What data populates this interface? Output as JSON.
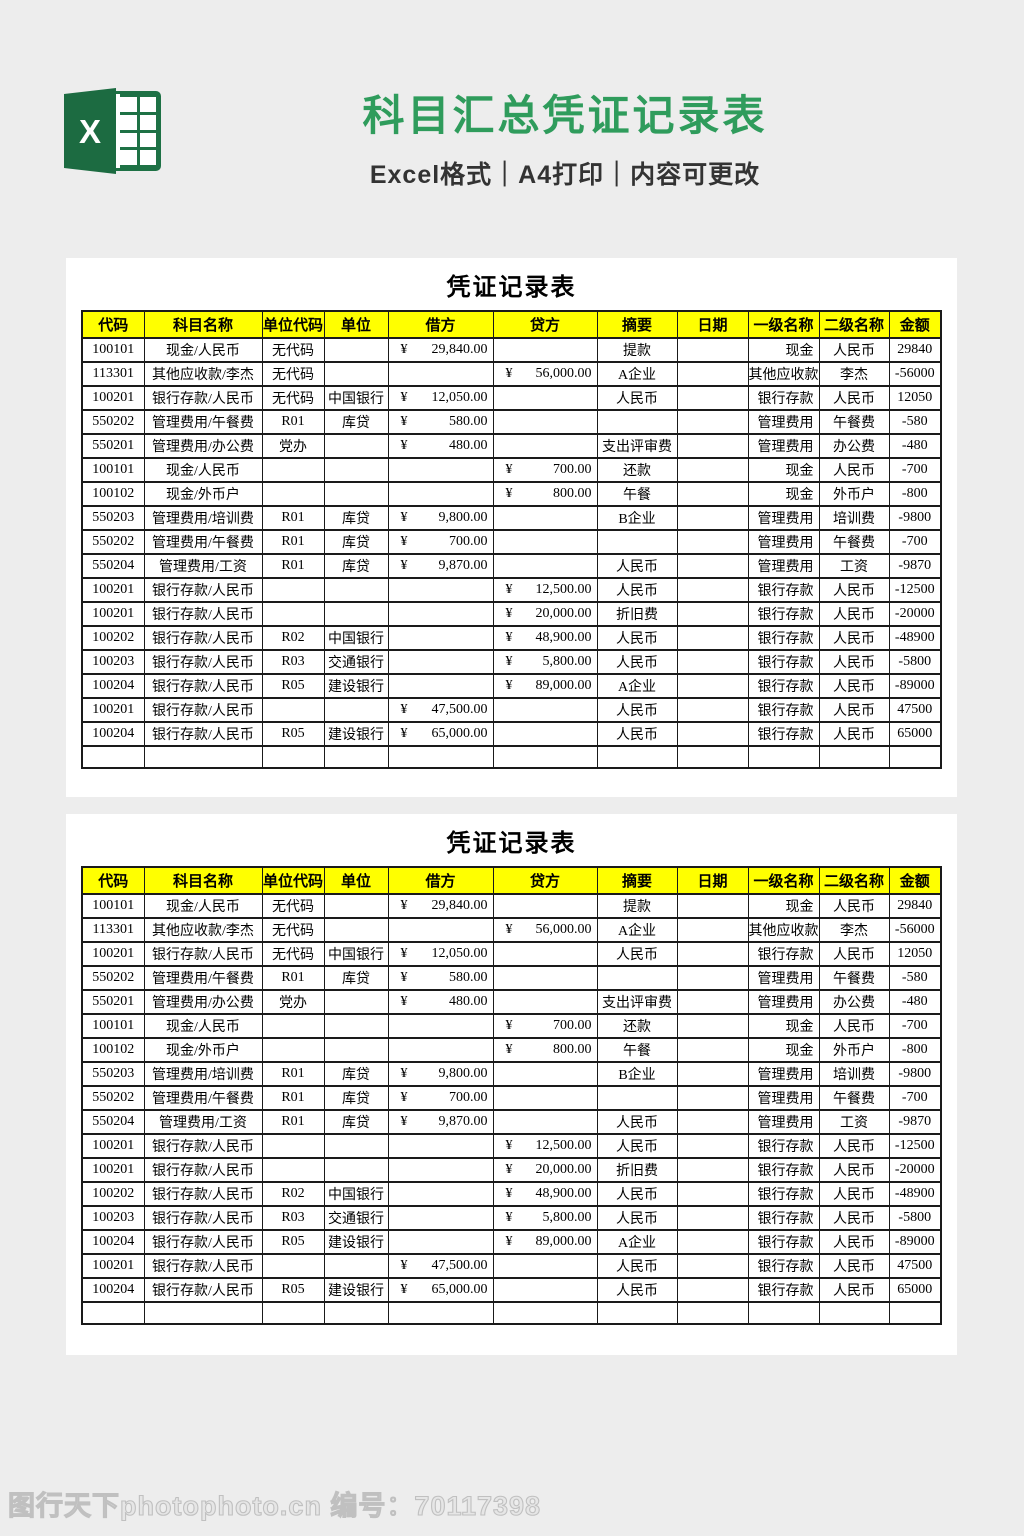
{
  "colors": {
    "page_bg": "#ededed",
    "panel_bg": "#ffffff",
    "accent_green": "#2f9c5c",
    "excel_green": "#1e7145",
    "excel_plate": "#1c6b41",
    "header_bg": "#ffff00",
    "border": "#1a1a1a",
    "subtitle": "#333333",
    "wm_fill": "#e6e6e6",
    "wm_stroke": "#c0c0c0"
  },
  "header": {
    "logo_letter": "X",
    "title": "科目汇总凭证记录表",
    "subtitle": "Excel格式｜A4打印｜内容可更改"
  },
  "table": {
    "title": "凭证记录表",
    "currency_symbol": "¥",
    "headers": [
      "代码",
      "科目名称",
      "单位代码",
      "单位",
      "借方",
      "贷方",
      "摘要",
      "日期",
      "一级名称",
      "二级名称",
      "金额"
    ],
    "rows": [
      {
        "code": "100101",
        "subject": "现金/人民币",
        "unit_code": "无代码",
        "unit": "",
        "debit": "29,840.00",
        "credit": "",
        "summary": "提款",
        "date": "",
        "level1": "现金",
        "level2": "人民币",
        "amount": "29840"
      },
      {
        "code": "113301",
        "subject": "其他应收款/李杰",
        "unit_code": "无代码",
        "unit": "",
        "debit": "",
        "credit": "56,000.00",
        "summary": "A企业",
        "date": "",
        "level1": "其他应收款",
        "level2": "李杰",
        "amount": "-56000"
      },
      {
        "code": "100201",
        "subject": "银行存款/人民币",
        "unit_code": "无代码",
        "unit": "中国银行",
        "debit": "12,050.00",
        "credit": "",
        "summary": "人民币",
        "date": "",
        "level1": "银行存款",
        "level2": "人民币",
        "amount": "12050"
      },
      {
        "code": "550202",
        "subject": "管理费用/午餐费",
        "unit_code": "R01",
        "unit": "库贷",
        "debit": "580.00",
        "credit": "",
        "summary": "",
        "date": "",
        "level1": "管理费用",
        "level2": "午餐费",
        "amount": "-580"
      },
      {
        "code": "550201",
        "subject": "管理费用/办公费",
        "unit_code": "党办",
        "unit": "",
        "debit": "480.00",
        "credit": "",
        "summary": "支出评审费",
        "date": "",
        "level1": "管理费用",
        "level2": "办公费",
        "amount": "-480"
      },
      {
        "code": "100101",
        "subject": "现金/人民币",
        "unit_code": "",
        "unit": "",
        "debit": "",
        "credit": "700.00",
        "summary": "还款",
        "date": "",
        "level1": "现金",
        "level2": "人民币",
        "amount": "-700"
      },
      {
        "code": "100102",
        "subject": "现金/外币户",
        "unit_code": "",
        "unit": "",
        "debit": "",
        "credit": "800.00",
        "summary": "午餐",
        "date": "",
        "level1": "现金",
        "level2": "外币户",
        "amount": "-800"
      },
      {
        "code": "550203",
        "subject": "管理费用/培训费",
        "unit_code": "R01",
        "unit": "库贷",
        "debit": "9,800.00",
        "credit": "",
        "summary": "B企业",
        "date": "",
        "level1": "管理费用",
        "level2": "培训费",
        "amount": "-9800"
      },
      {
        "code": "550202",
        "subject": "管理费用/午餐费",
        "unit_code": "R01",
        "unit": "库贷",
        "debit": "700.00",
        "credit": "",
        "summary": "",
        "date": "",
        "level1": "管理费用",
        "level2": "午餐费",
        "amount": "-700"
      },
      {
        "code": "550204",
        "subject": "管理费用/工资",
        "unit_code": "R01",
        "unit": "库贷",
        "debit": "9,870.00",
        "credit": "",
        "summary": "人民币",
        "date": "",
        "level1": "管理费用",
        "level2": "工资",
        "amount": "-9870"
      },
      {
        "code": "100201",
        "subject": "银行存款/人民币",
        "unit_code": "",
        "unit": "",
        "debit": "",
        "credit": "12,500.00",
        "summary": "人民币",
        "date": "",
        "level1": "银行存款",
        "level2": "人民币",
        "amount": "-12500"
      },
      {
        "code": "100201",
        "subject": "银行存款/人民币",
        "unit_code": "",
        "unit": "",
        "debit": "",
        "credit": "20,000.00",
        "summary": "折旧费",
        "date": "",
        "level1": "银行存款",
        "level2": "人民币",
        "amount": "-20000"
      },
      {
        "code": "100202",
        "subject": "银行存款/人民币",
        "unit_code": "R02",
        "unit": "中国银行",
        "debit": "",
        "credit": "48,900.00",
        "summary": "人民币",
        "date": "",
        "level1": "银行存款",
        "level2": "人民币",
        "amount": "-48900"
      },
      {
        "code": "100203",
        "subject": "银行存款/人民币",
        "unit_code": "R03",
        "unit": "交通银行",
        "debit": "",
        "credit": "5,800.00",
        "summary": "人民币",
        "date": "",
        "level1": "银行存款",
        "level2": "人民币",
        "amount": "-5800"
      },
      {
        "code": "100204",
        "subject": "银行存款/人民币",
        "unit_code": "R05",
        "unit": "建设银行",
        "debit": "",
        "credit": "89,000.00",
        "summary": "A企业",
        "date": "",
        "level1": "银行存款",
        "level2": "人民币",
        "amount": "-89000"
      },
      {
        "code": "100201",
        "subject": "银行存款/人民币",
        "unit_code": "",
        "unit": "",
        "debit": "47,500.00",
        "credit": "",
        "summary": "人民币",
        "date": "",
        "level1": "银行存款",
        "level2": "人民币",
        "amount": "47500"
      },
      {
        "code": "100204",
        "subject": "银行存款/人民币",
        "unit_code": "R05",
        "unit": "建设银行",
        "debit": "65,000.00",
        "credit": "",
        "summary": "人民币",
        "date": "",
        "level1": "银行存款",
        "level2": "人民币",
        "amount": "65000"
      }
    ]
  },
  "watermark": "图行天下photophoto.cn 编号：70117398"
}
